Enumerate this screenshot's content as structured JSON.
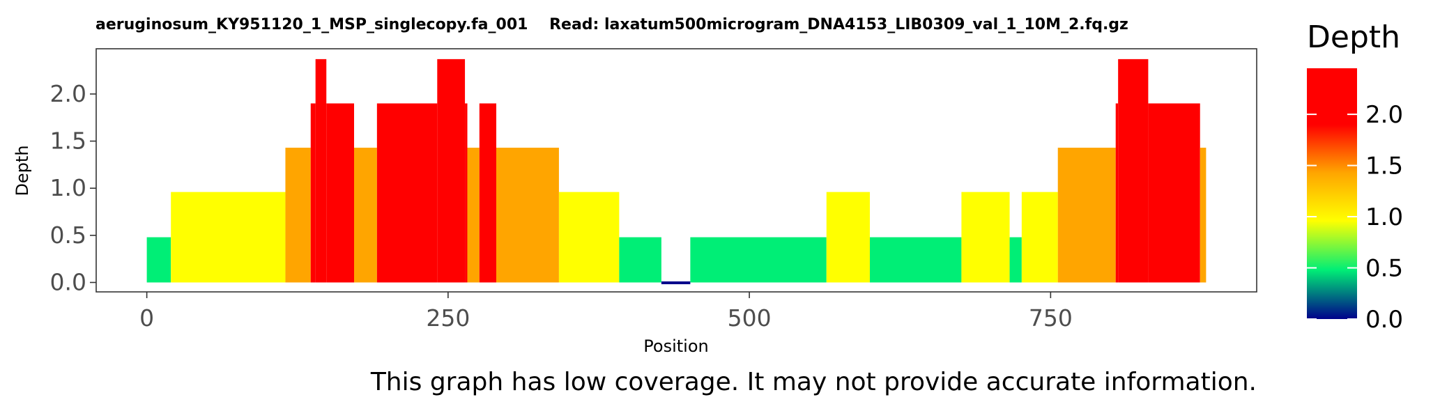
{
  "chart_data": {
    "type": "bar",
    "title": "aeruginosum_KY951120_1_MSP_singlecopy.fa_001    Read: laxatum500microgram_DNA4153_LIB0309_val_1_10M_2.fq.gz",
    "xlabel": "Position",
    "ylabel": "Depth",
    "xlim": [
      -42,
      921
    ],
    "ylim": [
      -0.1,
      2.48
    ],
    "x_ticks": [
      0,
      250,
      500,
      750
    ],
    "x_tick_labels": [
      "0",
      "250",
      "500",
      "750"
    ],
    "y_ticks": [
      0.0,
      0.5,
      1.0,
      1.5,
      2.0
    ],
    "y_tick_labels": [
      "0.0",
      "0.5",
      "1.0",
      "1.5",
      "2.0"
    ],
    "grid": false,
    "segments": [
      {
        "start": 0,
        "end": 20,
        "depth": 0.48
      },
      {
        "start": 20,
        "end": 115,
        "depth": 0.96
      },
      {
        "start": 115,
        "end": 136,
        "depth": 1.43
      },
      {
        "start": 136,
        "end": 140,
        "depth": 1.9
      },
      {
        "start": 140,
        "end": 149,
        "depth": 2.37
      },
      {
        "start": 149,
        "end": 172,
        "depth": 1.9
      },
      {
        "start": 172,
        "end": 191,
        "depth": 1.43
      },
      {
        "start": 191,
        "end": 241,
        "depth": 1.9
      },
      {
        "start": 241,
        "end": 264,
        "depth": 2.37
      },
      {
        "start": 264,
        "end": 266,
        "depth": 1.9
      },
      {
        "start": 266,
        "end": 276,
        "depth": 1.43
      },
      {
        "start": 276,
        "end": 290,
        "depth": 1.9
      },
      {
        "start": 290,
        "end": 342,
        "depth": 1.43
      },
      {
        "start": 342,
        "end": 392,
        "depth": 0.96
      },
      {
        "start": 392,
        "end": 427,
        "depth": 0.48
      },
      {
        "start": 427,
        "end": 451,
        "depth": 0.0
      },
      {
        "start": 451,
        "end": 564,
        "depth": 0.48
      },
      {
        "start": 564,
        "end": 600,
        "depth": 0.96
      },
      {
        "start": 600,
        "end": 676,
        "depth": 0.48
      },
      {
        "start": 676,
        "end": 716,
        "depth": 0.96
      },
      {
        "start": 716,
        "end": 726,
        "depth": 0.48
      },
      {
        "start": 726,
        "end": 756,
        "depth": 0.96
      },
      {
        "start": 756,
        "end": 804,
        "depth": 1.43
      },
      {
        "start": 804,
        "end": 806,
        "depth": 1.9
      },
      {
        "start": 806,
        "end": 831,
        "depth": 2.37
      },
      {
        "start": 831,
        "end": 874,
        "depth": 1.9
      },
      {
        "start": 874,
        "end": 879,
        "depth": 1.43
      }
    ],
    "legend": {
      "title": "Depth",
      "position": "right",
      "range": [
        0.0,
        2.45
      ],
      "ticks": [
        0.0,
        0.5,
        1.0,
        1.5,
        2.0
      ],
      "tick_labels": [
        "0.0",
        "0.5",
        "1.0",
        "1.5",
        "2.0"
      ],
      "color_stops": [
        {
          "value": 0.0,
          "color": "#00008B"
        },
        {
          "value": 0.48,
          "color": "#00EE76"
        },
        {
          "value": 0.96,
          "color": "#FFFF00"
        },
        {
          "value": 1.43,
          "color": "#FFA500"
        },
        {
          "value": 1.9,
          "color": "#FF0000"
        },
        {
          "value": 2.45,
          "color": "#FF0000"
        }
      ]
    },
    "note": "This graph has low coverage. It may not provide accurate information."
  },
  "colors": {
    "depth_0": "#00008B",
    "depth_0_5": "#00EE76",
    "depth_1_0": "#FFFF00",
    "depth_1_4": "#FFA500",
    "depth_1_9_plus": "#FF0000",
    "panel_border": "#333333",
    "tick_text": "#4d4d4d"
  }
}
